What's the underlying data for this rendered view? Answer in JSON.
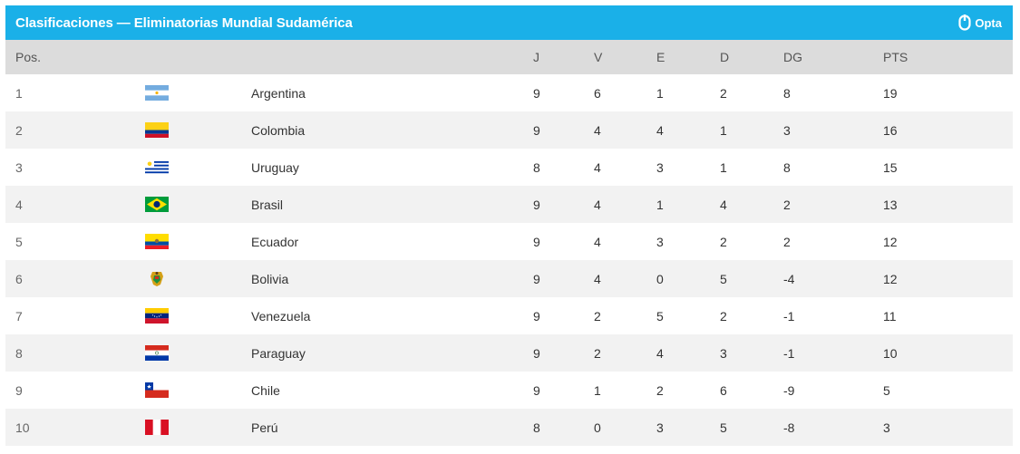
{
  "header": {
    "title": "Clasificaciones — Eliminatorias Mundial Sudamérica",
    "brand": "Opta"
  },
  "columns": {
    "pos": "Pos.",
    "j": "J",
    "v": "V",
    "e": "E",
    "d": "D",
    "dg": "DG",
    "pts": "PTS"
  },
  "rows": [
    {
      "pos": "1",
      "team": "Argentina",
      "flag": "argentina-flag-icon",
      "j": "9",
      "v": "6",
      "e": "1",
      "d": "2",
      "dg": "8",
      "pts": "19"
    },
    {
      "pos": "2",
      "team": "Colombia",
      "flag": "colombia-flag-icon",
      "j": "9",
      "v": "4",
      "e": "4",
      "d": "1",
      "dg": "3",
      "pts": "16"
    },
    {
      "pos": "3",
      "team": "Uruguay",
      "flag": "uruguay-flag-icon",
      "j": "8",
      "v": "4",
      "e": "3",
      "d": "1",
      "dg": "8",
      "pts": "15"
    },
    {
      "pos": "4",
      "team": "Brasil",
      "flag": "brazil-flag-icon",
      "j": "9",
      "v": "4",
      "e": "1",
      "d": "4",
      "dg": "2",
      "pts": "13"
    },
    {
      "pos": "5",
      "team": "Ecuador",
      "flag": "ecuador-flag-icon",
      "j": "9",
      "v": "4",
      "e": "3",
      "d": "2",
      "dg": "2",
      "pts": "12"
    },
    {
      "pos": "6",
      "team": "Bolivia",
      "flag": "bolivia-crest-icon",
      "j": "9",
      "v": "4",
      "e": "0",
      "d": "5",
      "dg": "-4",
      "pts": "12"
    },
    {
      "pos": "7",
      "team": "Venezuela",
      "flag": "venezuela-flag-icon",
      "j": "9",
      "v": "2",
      "e": "5",
      "d": "2",
      "dg": "-1",
      "pts": "11"
    },
    {
      "pos": "8",
      "team": "Paraguay",
      "flag": "paraguay-flag-icon",
      "j": "9",
      "v": "2",
      "e": "4",
      "d": "3",
      "dg": "-1",
      "pts": "10"
    },
    {
      "pos": "9",
      "team": "Chile",
      "flag": "chile-flag-icon",
      "j": "9",
      "v": "1",
      "e": "2",
      "d": "6",
      "dg": "-9",
      "pts": "5"
    },
    {
      "pos": "10",
      "team": "Perú",
      "flag": "peru-flag-icon",
      "j": "8",
      "v": "0",
      "e": "3",
      "d": "5",
      "dg": "-8",
      "pts": "3"
    }
  ],
  "colors": {
    "header_bg": "#1ab0e8",
    "column_header_bg": "#dcdcdc",
    "row_alt_bg": "#f2f2f2"
  }
}
